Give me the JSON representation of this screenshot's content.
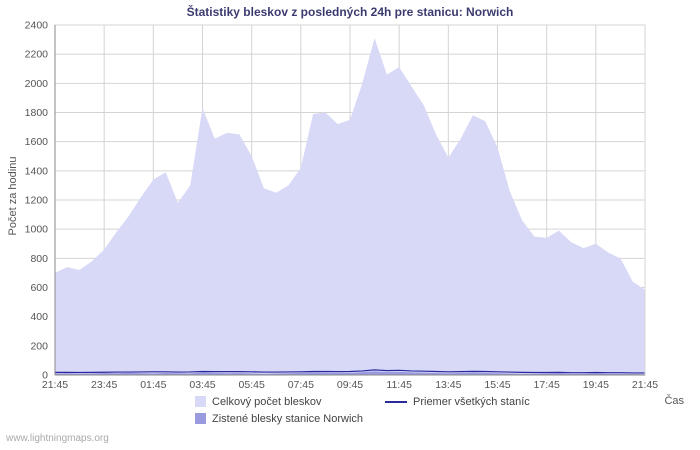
{
  "footer": {
    "watermark": "www.lightningmaps.org"
  },
  "chart_data": {
    "type": "area",
    "title": "Štatistiky bleskov z posledných 24h pre stanicu: Norwich",
    "xlabel": "Čas",
    "ylabel": "Počet za hodinu",
    "ylim": [
      0,
      2400
    ],
    "y_ticks": [
      0,
      200,
      400,
      600,
      800,
      1000,
      1200,
      1400,
      1600,
      1800,
      2000,
      2200,
      2400
    ],
    "x_tick_labels": [
      "21:45",
      "23:45",
      "01:45",
      "03:45",
      "05:45",
      "07:45",
      "09:45",
      "11:45",
      "13:45",
      "15:45",
      "17:45",
      "19:45",
      "21:45"
    ],
    "x_hours": [
      0,
      0.5,
      1,
      1.5,
      2,
      2.5,
      3,
      3.5,
      4,
      4.5,
      5,
      5.5,
      6,
      6.5,
      7,
      7.5,
      8,
      8.5,
      9,
      9.5,
      10,
      10.5,
      11,
      11.5,
      12,
      12.5,
      13,
      13.5,
      14,
      14.5,
      15,
      15.5,
      16,
      16.5,
      17,
      17.5,
      18,
      18.5,
      19,
      19.5,
      20,
      20.5,
      21,
      21.5,
      22,
      22.5,
      23,
      23.5,
      24
    ],
    "grid": true,
    "legend_position": "bottom",
    "series": [
      {
        "name": "Celkový počet bleskov",
        "type": "area",
        "color": "#d8d8f7",
        "values": [
          700,
          740,
          720,
          780,
          860,
          980,
          1090,
          1220,
          1340,
          1390,
          1180,
          1300,
          1830,
          1620,
          1660,
          1650,
          1500,
          1280,
          1250,
          1300,
          1420,
          1790,
          1800,
          1720,
          1750,
          2000,
          2310,
          2060,
          2110,
          1980,
          1850,
          1650,
          1490,
          1620,
          1780,
          1740,
          1560,
          1260,
          1060,
          950,
          940,
          990,
          910,
          870,
          900,
          840,
          800,
          640,
          585
        ]
      },
      {
        "name": "Zistené blesky stanice Norwich",
        "type": "area",
        "color": "#9a9ade",
        "values": [
          10,
          12,
          8,
          10,
          14,
          12,
          15,
          12,
          10,
          14,
          12,
          10,
          18,
          15,
          12,
          14,
          10,
          8,
          10,
          12,
          15,
          18,
          16,
          14,
          15,
          20,
          25,
          20,
          22,
          18,
          16,
          14,
          12,
          14,
          16,
          15,
          12,
          10,
          8,
          8,
          10,
          12,
          8,
          8,
          10,
          8,
          8,
          6,
          5
        ]
      },
      {
        "name": "Priemer všetkých staníc",
        "type": "line",
        "color": "#2a2aa0",
        "values": [
          18,
          18,
          17,
          18,
          19,
          20,
          20,
          21,
          22,
          22,
          20,
          21,
          24,
          23,
          23,
          23,
          22,
          20,
          20,
          21,
          22,
          24,
          24,
          23,
          24,
          28,
          35,
          30,
          32,
          28,
          26,
          24,
          22,
          23,
          25,
          24,
          22,
          20,
          18,
          17,
          17,
          18,
          16,
          16,
          17,
          16,
          16,
          14,
          14
        ]
      }
    ],
    "colors": {
      "grid": "#d4d4d4",
      "axis": "#8a8a8a",
      "title": "#3b3b70",
      "tick_text": "#555555"
    }
  }
}
